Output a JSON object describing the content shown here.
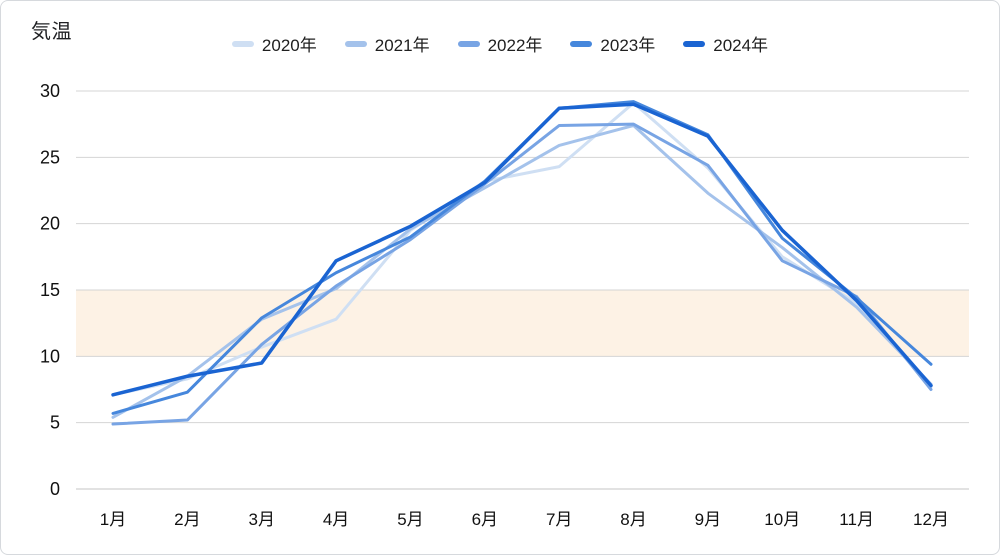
{
  "title": "気温",
  "chart_data": {
    "type": "line",
    "title": "気温",
    "xlabel": "",
    "ylabel": "",
    "ylim": [
      0,
      30
    ],
    "yticks": [
      0,
      5,
      10,
      15,
      20,
      25,
      30
    ],
    "grid": true,
    "legend_position": "top",
    "categories": [
      "1月",
      "2月",
      "3月",
      "4月",
      "5月",
      "6月",
      "7月",
      "8月",
      "9月",
      "10月",
      "11月",
      "12月"
    ],
    "series": [
      {
        "name": "2020年",
        "color": "#cfdff3",
        "values": [
          7.1,
          8.3,
          10.7,
          12.8,
          19.5,
          23.2,
          24.3,
          29.1,
          24.2,
          17.5,
          14.0,
          7.7
        ]
      },
      {
        "name": "2021年",
        "color": "#a4c2eb",
        "values": [
          5.4,
          8.5,
          12.8,
          15.1,
          19.6,
          22.7,
          25.9,
          27.4,
          22.3,
          18.2,
          13.7,
          7.9
        ]
      },
      {
        "name": "2022年",
        "color": "#78a4e4",
        "values": [
          4.9,
          5.2,
          10.9,
          15.3,
          18.8,
          23.0,
          27.4,
          27.5,
          24.4,
          17.2,
          14.5,
          7.5
        ]
      },
      {
        "name": "2023年",
        "color": "#4687dc",
        "values": [
          5.7,
          7.3,
          12.9,
          16.3,
          19.0,
          23.2,
          28.7,
          29.2,
          26.7,
          18.9,
          14.4,
          9.4
        ]
      },
      {
        "name": "2024年",
        "color": "#1a64d2",
        "values": [
          7.1,
          8.5,
          9.5,
          17.2,
          19.8,
          23.1,
          28.7,
          29.0,
          26.6,
          19.5,
          14.2,
          7.8
        ]
      }
    ],
    "annotations": [
      {
        "type": "horizontal_band",
        "y_from": 10,
        "y_to": 15,
        "color": "#fdf2e5",
        "label": ""
      }
    ]
  }
}
